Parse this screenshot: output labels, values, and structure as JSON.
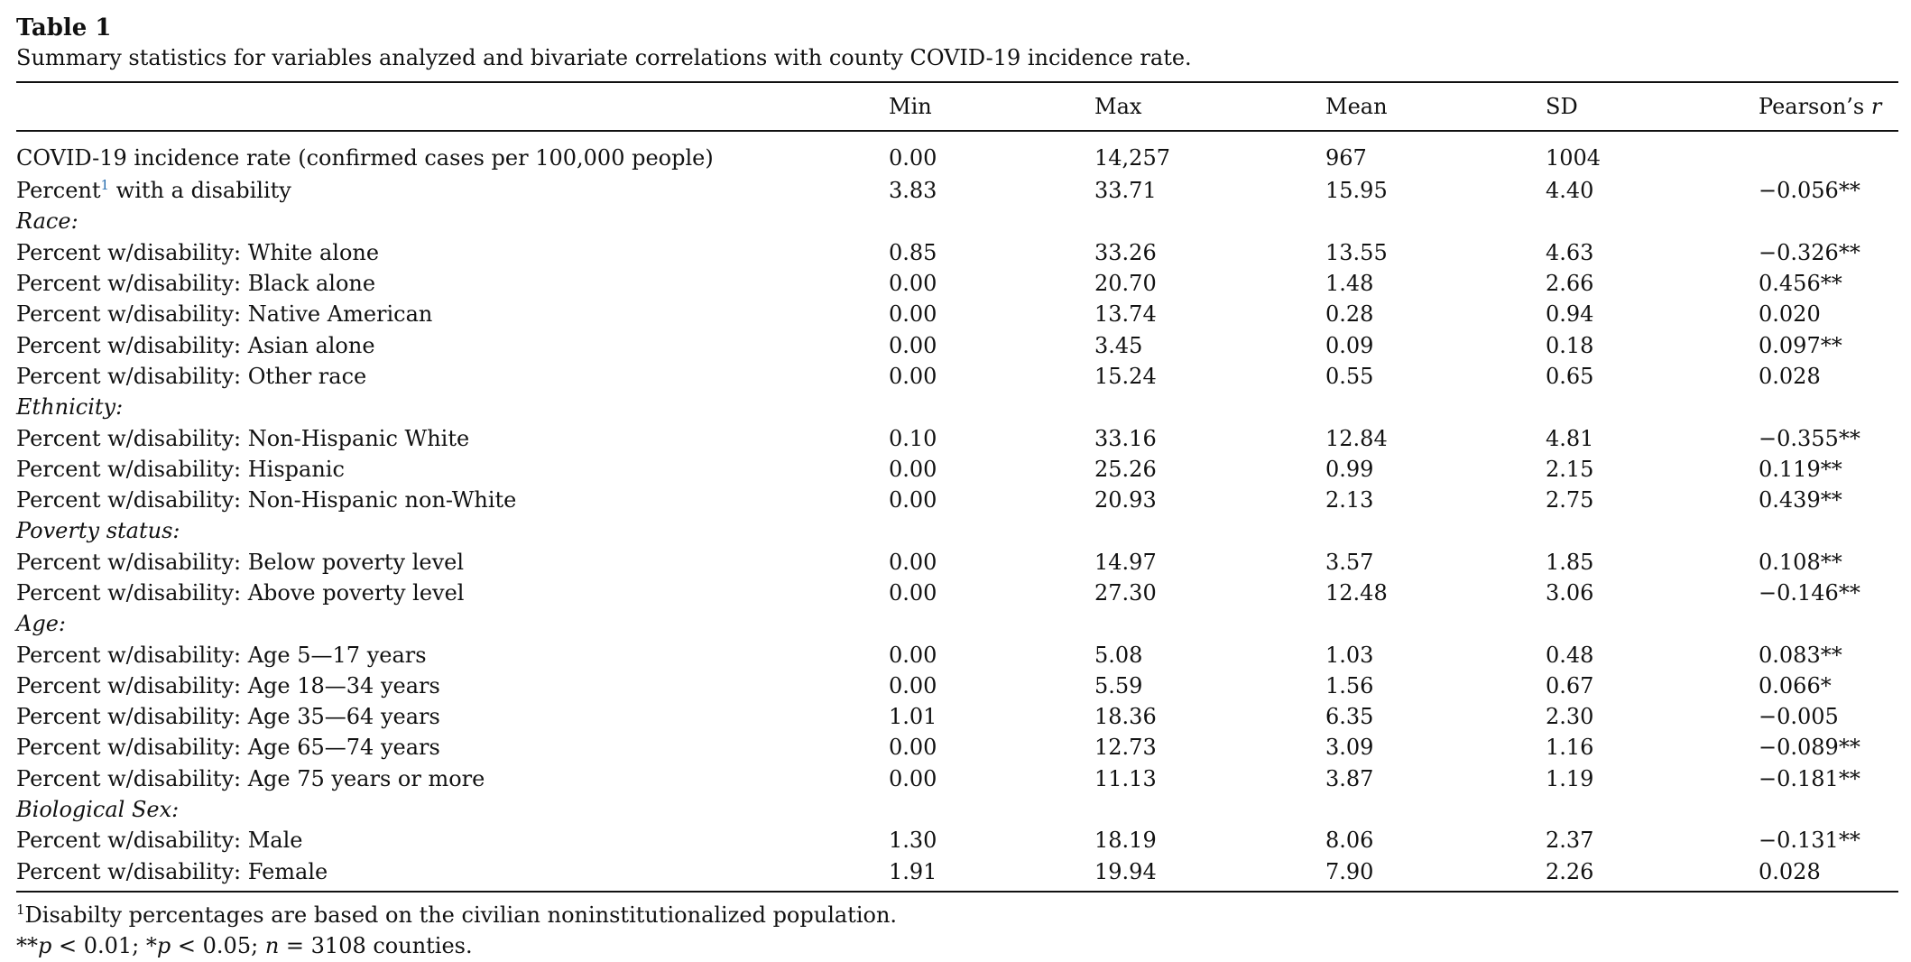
{
  "table": {
    "title": "Table 1",
    "caption": "Summary statistics for variables analyzed and bivariate correlations with county COVID-19 incidence rate.",
    "headers": {
      "label": "",
      "min": "Min",
      "max": "Max",
      "mean": "Mean",
      "sd": "SD",
      "r_prefix": "Pearson’s ",
      "r_symbol": "r"
    },
    "rows": [
      {
        "type": "data",
        "label": "COVID-19 incidence rate (confirmed cases per 100,000 people)",
        "min": "0.00",
        "max": "14,257",
        "mean": "967",
        "sd": "1004",
        "r": ""
      },
      {
        "type": "data_fn",
        "label_before": "Percent",
        "fn_marker": "1",
        "label_after": " with a disability",
        "min": "3.83",
        "max": "33.71",
        "mean": "15.95",
        "sd": "4.40",
        "r": "−0.056**"
      },
      {
        "type": "section",
        "label": "Race:"
      },
      {
        "type": "data",
        "label": "Percent w/disability: White alone",
        "min": "0.85",
        "max": "33.26",
        "mean": "13.55",
        "sd": "4.63",
        "r": "−0.326**"
      },
      {
        "type": "data",
        "label": "Percent w/disability: Black alone",
        "min": "0.00",
        "max": "20.70",
        "mean": "1.48",
        "sd": "2.66",
        "r": "0.456**"
      },
      {
        "type": "data",
        "label": "Percent w/disability: Native American",
        "min": "0.00",
        "max": "13.74",
        "mean": "0.28",
        "sd": "0.94",
        "r": "0.020"
      },
      {
        "type": "data",
        "label": "Percent w/disability: Asian alone",
        "min": "0.00",
        "max": "3.45",
        "mean": "0.09",
        "sd": "0.18",
        "r": "0.097**"
      },
      {
        "type": "data",
        "label": "Percent w/disability: Other race",
        "min": "0.00",
        "max": "15.24",
        "mean": "0.55",
        "sd": "0.65",
        "r": "0.028"
      },
      {
        "type": "section",
        "label": "Ethnicity:"
      },
      {
        "type": "data",
        "label": "Percent w/disability: Non-Hispanic White",
        "min": "0.10",
        "max": "33.16",
        "mean": "12.84",
        "sd": "4.81",
        "r": "−0.355**"
      },
      {
        "type": "data",
        "label": "Percent w/disability: Hispanic",
        "min": "0.00",
        "max": "25.26",
        "mean": "0.99",
        "sd": "2.15",
        "r": "0.119**"
      },
      {
        "type": "data",
        "label": "Percent w/disability: Non-Hispanic non-White",
        "min": "0.00",
        "max": "20.93",
        "mean": "2.13",
        "sd": "2.75",
        "r": "0.439**"
      },
      {
        "type": "section",
        "label": "Poverty status:"
      },
      {
        "type": "data",
        "label": "Percent w/disability: Below poverty level",
        "min": "0.00",
        "max": "14.97",
        "mean": "3.57",
        "sd": "1.85",
        "r": "0.108**"
      },
      {
        "type": "data",
        "label": "Percent w/disability: Above poverty level",
        "min": "0.00",
        "max": "27.30",
        "mean": "12.48",
        "sd": "3.06",
        "r": "−0.146**"
      },
      {
        "type": "section",
        "label": "Age:"
      },
      {
        "type": "data",
        "label": "Percent w/disability: Age 5—17 years",
        "min": "0.00",
        "max": "5.08",
        "mean": "1.03",
        "sd": "0.48",
        "r": "0.083**"
      },
      {
        "type": "data",
        "label": "Percent w/disability: Age 18—34 years",
        "min": "0.00",
        "max": "5.59",
        "mean": "1.56",
        "sd": "0.67",
        "r": "0.066*"
      },
      {
        "type": "data",
        "label": "Percent w/disability: Age 35—64 years",
        "min": "1.01",
        "max": "18.36",
        "mean": "6.35",
        "sd": "2.30",
        "r": "−0.005"
      },
      {
        "type": "data",
        "label": "Percent w/disability: Age 65—74 years",
        "min": "0.00",
        "max": "12.73",
        "mean": "3.09",
        "sd": "1.16",
        "r": "−0.089**"
      },
      {
        "type": "data",
        "label": "Percent w/disability: Age 75 years or more",
        "min": "0.00",
        "max": "11.13",
        "mean": "3.87",
        "sd": "1.19",
        "r": "−0.181**"
      },
      {
        "type": "section",
        "label": "Biological Sex:"
      },
      {
        "type": "data",
        "label": "Percent w/disability: Male",
        "min": "1.30",
        "max": "18.19",
        "mean": "8.06",
        "sd": "2.37",
        "r": "−0.131**"
      },
      {
        "type": "data",
        "label": "Percent w/disability: Female",
        "min": "1.91",
        "max": "19.94",
        "mean": "7.90",
        "sd": "2.26",
        "r": "0.028"
      }
    ],
    "footnotes": {
      "note1_marker": "1",
      "note1_text": "Disabilty percentages are based on the civilian noninstitutionalized population.",
      "note2_part1": "**",
      "note2_p1": "p",
      "note2_part2": " < 0.01; *",
      "note2_p2": "p",
      "note2_part3": " < 0.05; ",
      "note2_n": "n",
      "note2_part4": " = 3108 counties."
    }
  }
}
